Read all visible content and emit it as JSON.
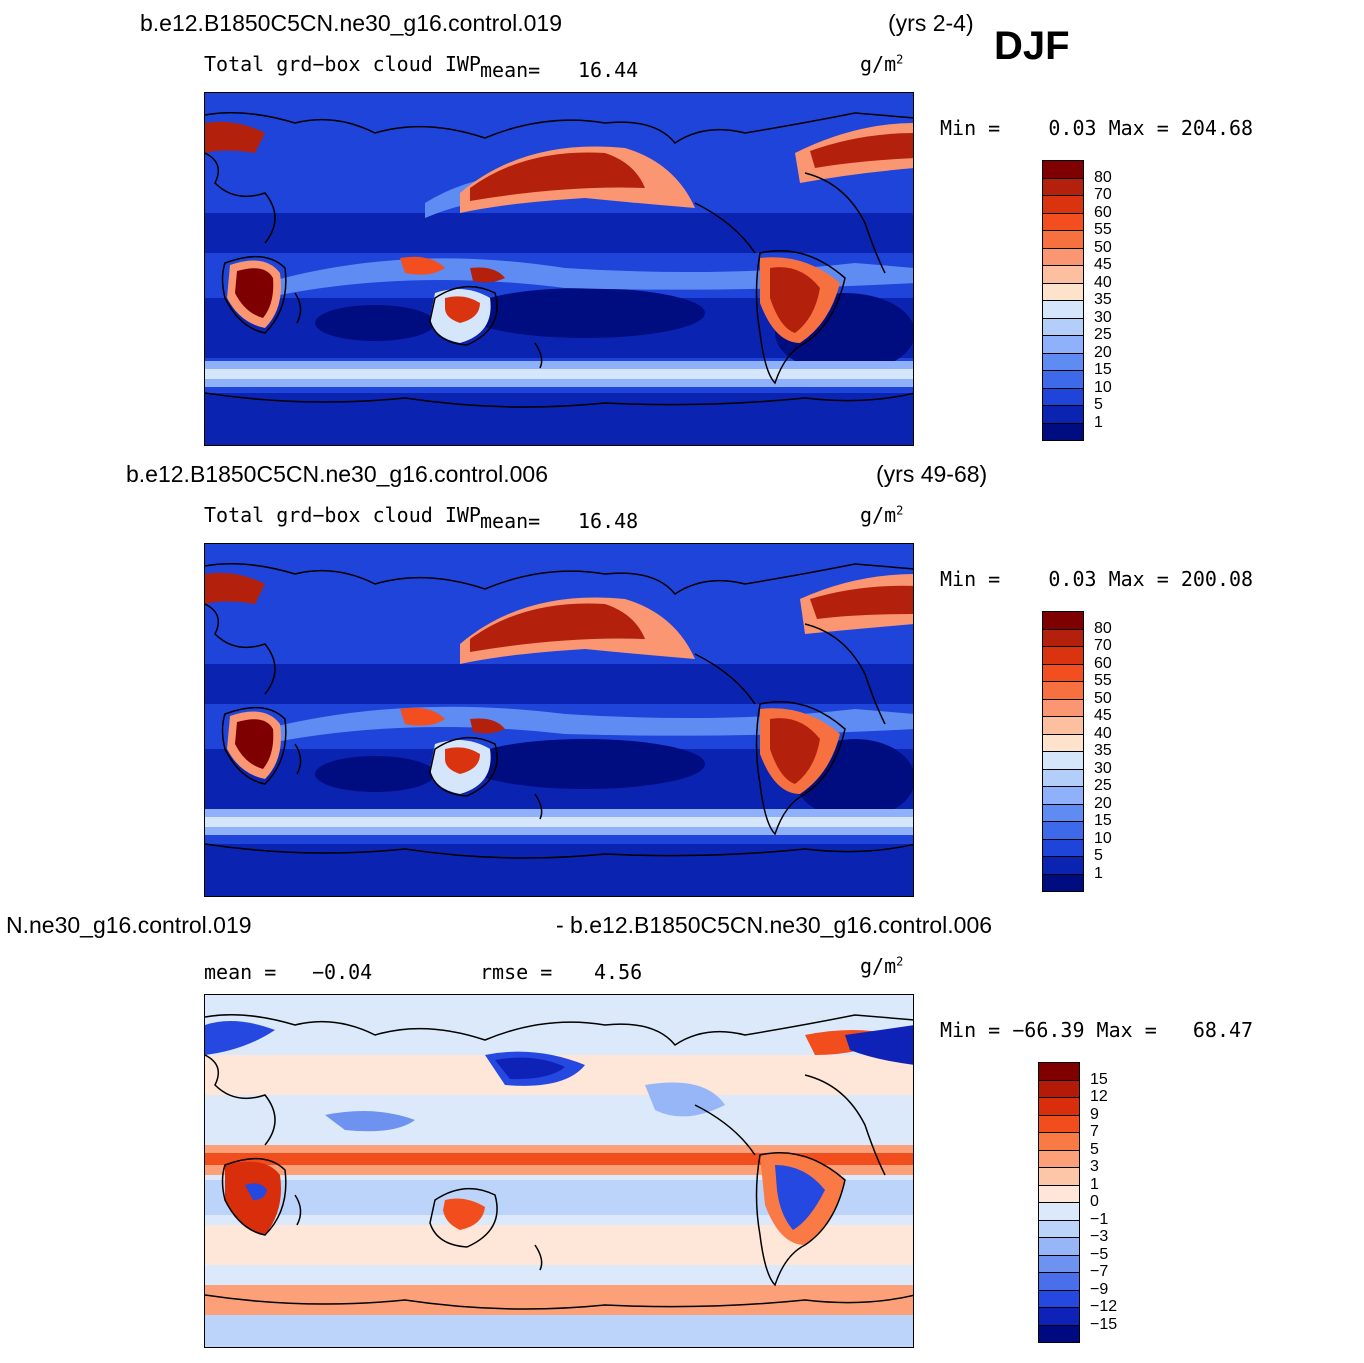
{
  "season": "DJF",
  "panels": [
    {
      "case": "b.e12.B1850C5CN.ne30_g16.control.019",
      "years": "(yrs 2-4)",
      "variable": "Total grd−box cloud IWP",
      "mean_label": "mean=",
      "mean_value": "16.44",
      "unit": "g/m",
      "unit_exp": "2",
      "minmax": "Min =    0.03 Max = 204.68",
      "levels": [
        "80",
        "70",
        "60",
        "55",
        "50",
        "45",
        "40",
        "35",
        "30",
        "25",
        "20",
        "15",
        "10",
        "5",
        "1"
      ],
      "colors": [
        "#7f0000",
        "#b3200c",
        "#d9330f",
        "#f24e1f",
        "#f7703f",
        "#fa9672",
        "#fcbfa0",
        "#fde3cc",
        "#d6e6fa",
        "#b4cefa",
        "#8fb0fa",
        "#5f8cf2",
        "#3d6ae8",
        "#1f44d9",
        "#0a23b0",
        "#000d80"
      ],
      "map_type": "filled-contour"
    },
    {
      "case": "b.e12.B1850C5CN.ne30_g16.control.006",
      "years": "(yrs 49-68)",
      "variable": "Total grd−box cloud IWP",
      "mean_label": "mean=",
      "mean_value": "16.48",
      "unit": "g/m",
      "unit_exp": "2",
      "minmax": "Min =    0.03 Max = 200.08",
      "levels": [
        "80",
        "70",
        "60",
        "55",
        "50",
        "45",
        "40",
        "35",
        "30",
        "25",
        "20",
        "15",
        "10",
        "5",
        "1"
      ],
      "colors": [
        "#7f0000",
        "#b3200c",
        "#d9330f",
        "#f24e1f",
        "#f7703f",
        "#fa9672",
        "#fcbfa0",
        "#fde3cc",
        "#d6e6fa",
        "#b4cefa",
        "#8fb0fa",
        "#5f8cf2",
        "#3d6ae8",
        "#1f44d9",
        "#0a23b0",
        "#000d80"
      ],
      "map_type": "filled-contour"
    },
    {
      "case_left": "N.ne30_g16.control.019",
      "case_right": "- b.e12.B1850C5CN.ne30_g16.control.006",
      "mean_label": "mean =",
      "mean_value": "−0.04",
      "rmse_label": "rmse =",
      "rmse_value": "4.56",
      "unit": "g/m",
      "unit_exp": "2",
      "minmax": "Min = −66.39 Max =   68.47",
      "levels": [
        "15",
        "12",
        "9",
        "7",
        "5",
        "3",
        "1",
        "0",
        "−1",
        "−3",
        "−5",
        "−7",
        "−9",
        "−12",
        "−15"
      ],
      "colors": [
        "#800000",
        "#b31a08",
        "#d92e0c",
        "#f24d1c",
        "#fa7a45",
        "#fca07a",
        "#fdc6a8",
        "#fee6d8",
        "#dce9fa",
        "#bcd3fa",
        "#97b6f7",
        "#6d92f0",
        "#4a6fea",
        "#2448e0",
        "#0f22b8",
        "#000a80"
      ],
      "map_type": "difference"
    }
  ]
}
